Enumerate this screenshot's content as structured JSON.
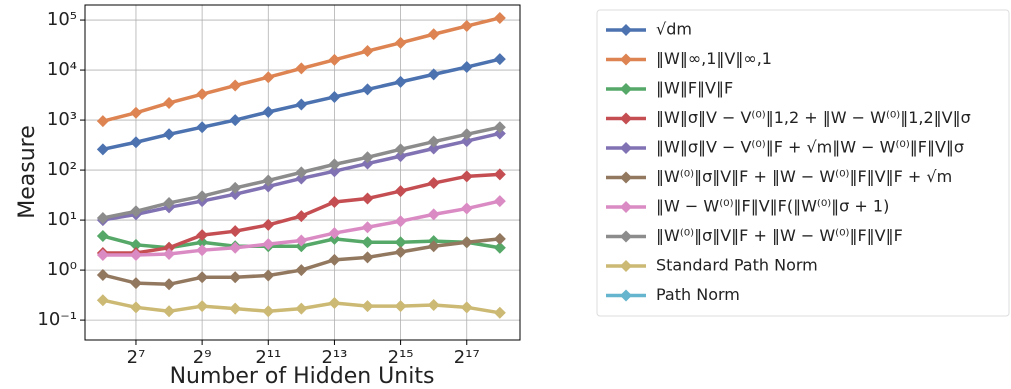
{
  "chart_data": {
    "type": "line",
    "x_label": "Number of Hidden Units",
    "y_label": "Measure",
    "x": [
      64,
      128,
      256,
      512,
      1024,
      2048,
      4096,
      8192,
      16384,
      32768,
      65536,
      131072,
      262144
    ],
    "xlim": [
      44,
      400000
    ],
    "xscale": "log2",
    "xticks": [
      {
        "value": 128,
        "label": "2⁷"
      },
      {
        "value": 512,
        "label": "2⁹"
      },
      {
        "value": 2048,
        "label": "2¹¹"
      },
      {
        "value": 8192,
        "label": "2¹³"
      },
      {
        "value": 32768,
        "label": "2¹⁵"
      },
      {
        "value": 131072,
        "label": "2¹⁷"
      }
    ],
    "ylim": [
      0.04,
      200000
    ],
    "yscale": "log",
    "yticks": [
      {
        "value": 0.1,
        "label": "10⁻¹"
      },
      {
        "value": 1,
        "label": "10⁰"
      },
      {
        "value": 10,
        "label": "10¹"
      },
      {
        "value": 100,
        "label": "10²"
      },
      {
        "value": 1000,
        "label": "10³"
      },
      {
        "value": 10000,
        "label": "10⁴"
      },
      {
        "value": 100000,
        "label": "10⁵"
      }
    ],
    "grid": true,
    "legend": "outside right",
    "series": [
      {
        "name": "√dm",
        "color": "#4c72b0",
        "values": [
          260,
          360,
          520,
          720,
          1000,
          1450,
          2050,
          2900,
          4100,
          5800,
          8200,
          11500,
          16500
        ]
      },
      {
        "name": "‖W‖∞,1‖V‖∞,1",
        "color": "#dd8452",
        "values": [
          950,
          1400,
          2200,
          3300,
          4900,
          7200,
          10800,
          16000,
          24000,
          35000,
          52000,
          76000,
          110000
        ]
      },
      {
        "name": "‖W‖F‖V‖F",
        "color": "#55a868",
        "values": [
          4.8,
          3.2,
          2.8,
          3.6,
          3.0,
          3.0,
          3.0,
          4.2,
          3.6,
          3.6,
          3.8,
          3.6,
          2.8
        ]
      },
      {
        "name": "‖W‖σ‖V − V⁽⁰⁾‖1,2 + ‖W − W⁽⁰⁾‖1,2‖V‖σ",
        "color": "#c44e52",
        "values": [
          2.2,
          2.2,
          2.8,
          5.0,
          6.0,
          8.0,
          12,
          23,
          27,
          38,
          55,
          75,
          82
        ]
      },
      {
        "name": "‖W‖σ‖V − V⁽⁰⁾‖F + √m‖W − W⁽⁰⁾‖F‖V‖σ",
        "color": "#8172b3",
        "values": [
          10,
          13,
          18,
          24,
          33,
          47,
          68,
          95,
          135,
          190,
          270,
          380,
          540
        ]
      },
      {
        "name": "‖W⁽⁰⁾‖σ‖V‖F + ‖W − W⁽⁰⁾‖F‖V‖F + √m",
        "color": "#937860",
        "values": [
          0.8,
          0.55,
          0.52,
          0.72,
          0.72,
          0.78,
          1.0,
          1.6,
          1.8,
          2.3,
          3.0,
          3.6,
          4.2
        ]
      },
      {
        "name": "‖W − W⁽⁰⁾‖F‖V‖F(‖W⁽⁰⁾‖σ + 1)",
        "color": "#da8bc3",
        "values": [
          2.0,
          2.0,
          2.1,
          2.5,
          2.8,
          3.3,
          3.9,
          5.5,
          7.2,
          9.5,
          13,
          17,
          24
        ]
      },
      {
        "name": "‖W⁽⁰⁾‖σ‖V‖F + ‖W − W⁽⁰⁾‖F‖V‖F",
        "color": "#8c8c8c",
        "values": [
          11,
          15,
          22,
          30,
          44,
          62,
          90,
          130,
          180,
          260,
          370,
          520,
          720
        ]
      },
      {
        "name": "Standard Path Norm",
        "color": "#ccb974",
        "values": [
          0.25,
          0.18,
          0.15,
          0.19,
          0.17,
          0.15,
          0.17,
          0.22,
          0.19,
          0.19,
          0.2,
          0.18,
          0.14
        ]
      },
      {
        "name": "Path Norm",
        "color": "#64b5cd",
        "values": [
          null,
          null,
          null,
          null,
          null,
          null,
          null,
          null,
          null,
          null,
          null,
          null,
          null
        ]
      }
    ]
  }
}
